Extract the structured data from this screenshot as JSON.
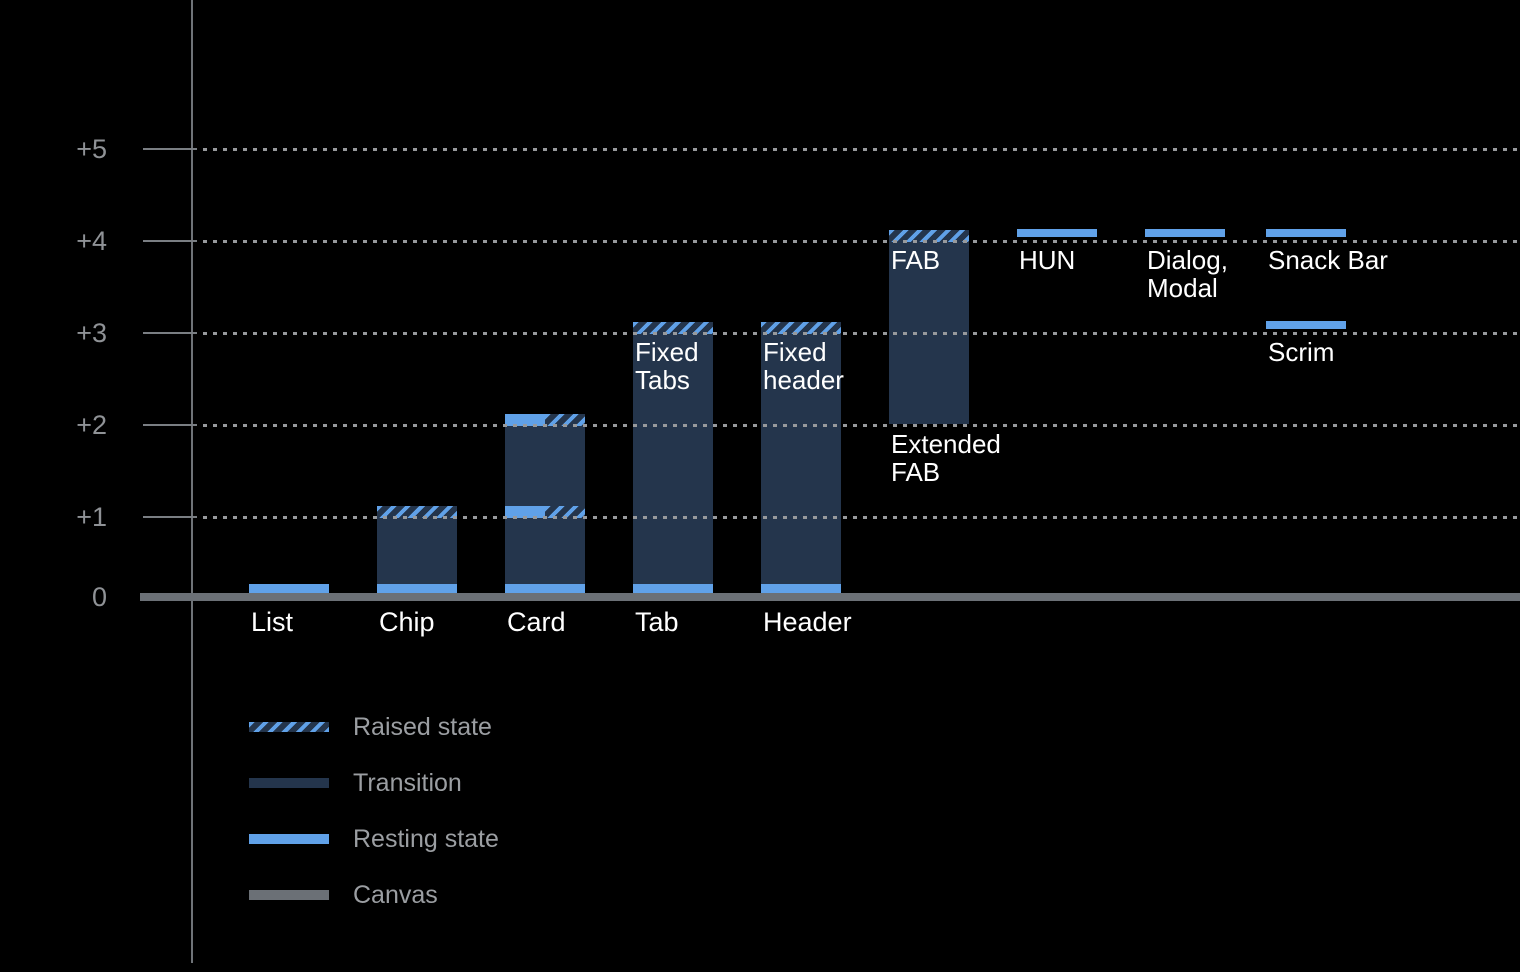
{
  "chart_data": {
    "type": "bar",
    "title": "",
    "subtitle": "",
    "y_axis": {
      "tick_labels": [
        "0",
        "+1",
        "+2",
        "+3",
        "+4",
        "+5"
      ],
      "range": [
        0,
        5.5
      ],
      "gridlines": "dotted"
    },
    "columns": [
      {
        "id": "list",
        "labels": [
          {
            "text": "List",
            "at": "baseline"
          }
        ],
        "elevation": {
          "resting": 0
        },
        "segments": [
          {
            "kind": "resting_ground"
          }
        ]
      },
      {
        "id": "chip",
        "labels": [
          {
            "text": "Chip",
            "at": "baseline"
          }
        ],
        "elevation": {
          "resting": 0,
          "raised": 1
        },
        "segments": [
          {
            "kind": "resting_ground"
          },
          {
            "kind": "transition",
            "from": "ground",
            "to": 1
          },
          {
            "kind": "raised_band",
            "level": 1
          }
        ]
      },
      {
        "id": "card",
        "labels": [
          {
            "text": "Card",
            "at": "baseline"
          }
        ],
        "elevation": {
          "resting_low": 1,
          "raised_low": 1,
          "resting_high": 2,
          "raised_high": 2
        },
        "segments": [
          {
            "kind": "resting_ground"
          },
          {
            "kind": "transition",
            "from": "ground",
            "to": 2
          },
          {
            "kind": "split_band",
            "level": 1
          },
          {
            "kind": "split_band",
            "level": 2
          }
        ]
      },
      {
        "id": "tab",
        "labels": [
          {
            "text": "Tab",
            "at": "baseline"
          },
          {
            "text": "Fixed\nTabs",
            "at": 3
          }
        ],
        "elevation": {
          "resting": 0,
          "raised": 3
        },
        "segments": [
          {
            "kind": "resting_ground"
          },
          {
            "kind": "transition",
            "from": "ground",
            "to": 3
          },
          {
            "kind": "raised_band",
            "level": 3
          }
        ]
      },
      {
        "id": "header",
        "labels": [
          {
            "text": "Header",
            "at": "baseline"
          },
          {
            "text": "Fixed\nheader",
            "at": 3
          }
        ],
        "elevation": {
          "resting": 0,
          "raised": 3
        },
        "segments": [
          {
            "kind": "resting_ground"
          },
          {
            "kind": "transition",
            "from": "ground",
            "to": 3
          },
          {
            "kind": "raised_band",
            "level": 3
          }
        ]
      },
      {
        "id": "fab",
        "labels": [
          {
            "text": "FAB",
            "at": 4
          },
          {
            "text": "Extended\nFAB",
            "at": 2
          }
        ],
        "elevation": {
          "resting": 2,
          "raised": 4
        },
        "segments": [
          {
            "kind": "resting_band",
            "level": 2
          },
          {
            "kind": "transition",
            "from": 2,
            "to": 4
          },
          {
            "kind": "raised_band",
            "level": 4
          }
        ]
      },
      {
        "id": "hun",
        "labels": [
          {
            "text": "HUN",
            "at": 4
          }
        ],
        "elevation": {
          "resting": 4
        },
        "segments": [
          {
            "kind": "resting_float",
            "level": 4
          }
        ]
      },
      {
        "id": "dialog-modal",
        "labels": [
          {
            "text": "Dialog,\nModal",
            "at": 4
          }
        ],
        "elevation": {
          "resting": 4
        },
        "segments": [
          {
            "kind": "resting_float",
            "level": 4
          }
        ]
      },
      {
        "id": "snackbar-scrim",
        "labels": [
          {
            "text": "Snack Bar",
            "at": 4
          },
          {
            "text": "Scrim",
            "at": 3
          }
        ],
        "elevation": {
          "snack_bar": 4,
          "scrim": 3
        },
        "segments": [
          {
            "kind": "resting_float",
            "level": 4
          },
          {
            "kind": "resting_float",
            "level": 3
          }
        ]
      }
    ],
    "legend": {
      "position": "bottom-left",
      "items": [
        {
          "key": "raised",
          "label": "Raised state"
        },
        {
          "key": "transition",
          "label": "Transition"
        },
        {
          "key": "resting",
          "label": "Resting state"
        },
        {
          "key": "canvas",
          "label": "Canvas"
        }
      ]
    },
    "colors": {
      "background": "#000000",
      "resting": "#60a1e8",
      "transition": "#24354c",
      "canvas": "#6b7076",
      "axis": "#6f7378",
      "tickline": "#7a7e83",
      "grid": "#97999c",
      "tick_text": "#8f9296",
      "legend_text": "#9b9ea2",
      "label_text": "#ffffff"
    }
  }
}
